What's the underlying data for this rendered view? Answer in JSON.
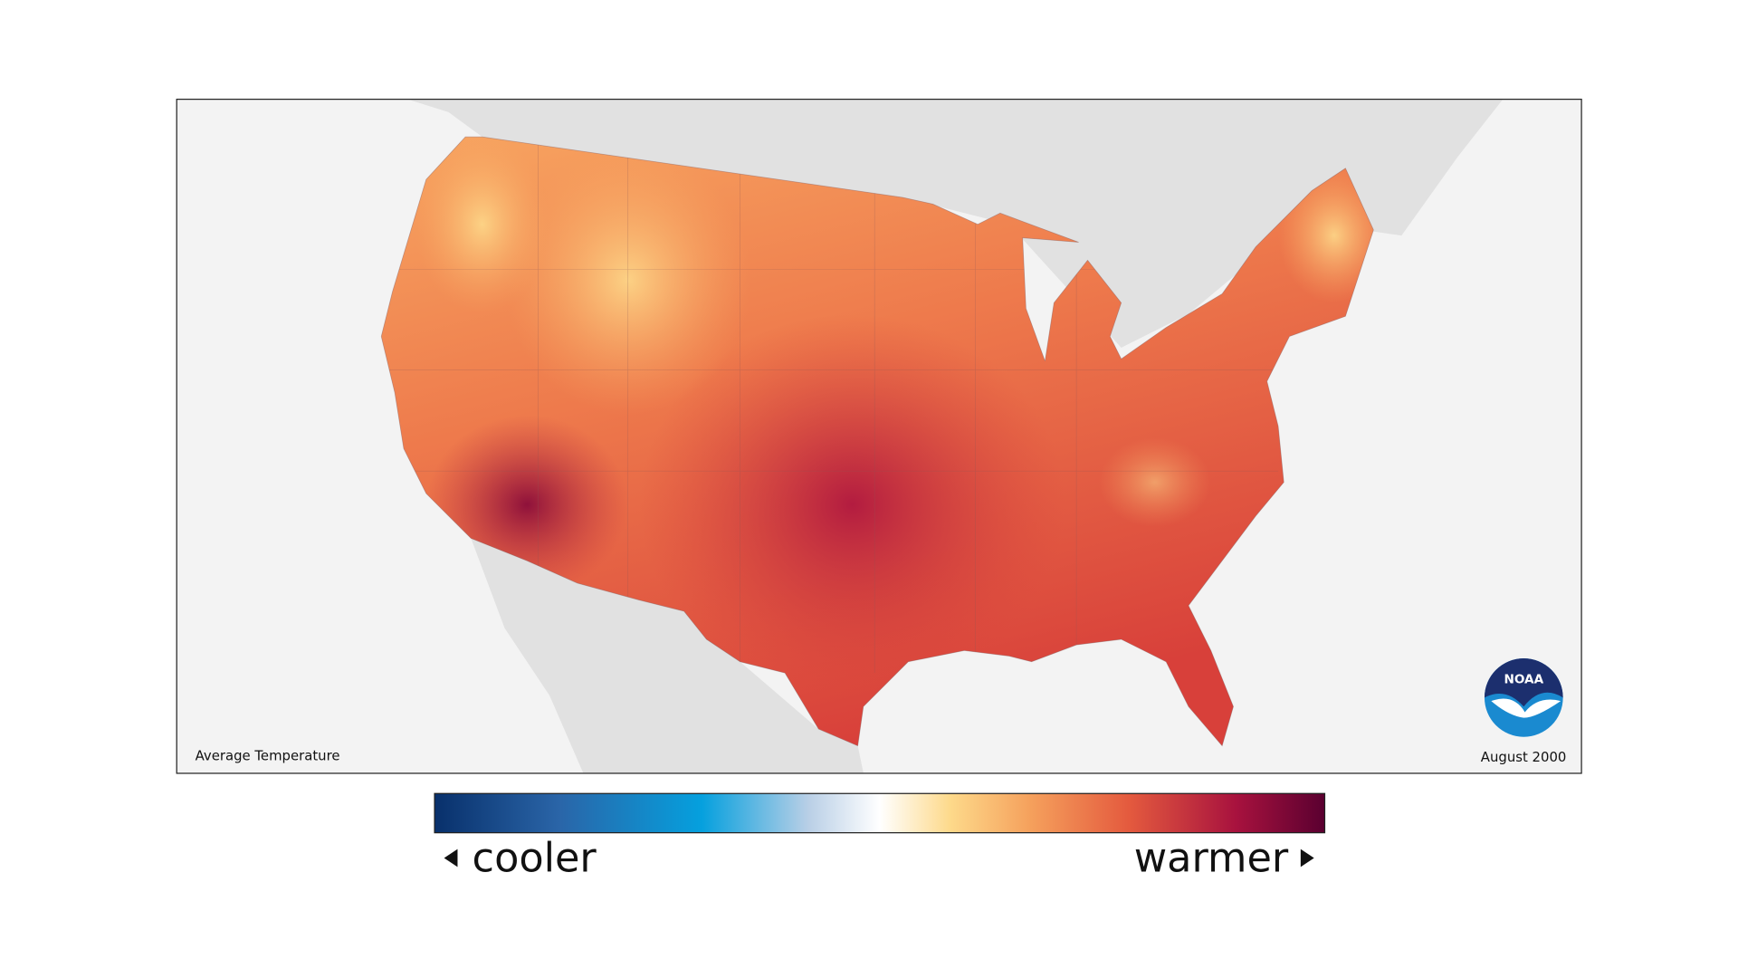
{
  "map": {
    "title": "Average Temperature",
    "date": "August 2000",
    "logo": "NOAA"
  },
  "legend": {
    "low": "cooler",
    "high": "warmer"
  }
}
